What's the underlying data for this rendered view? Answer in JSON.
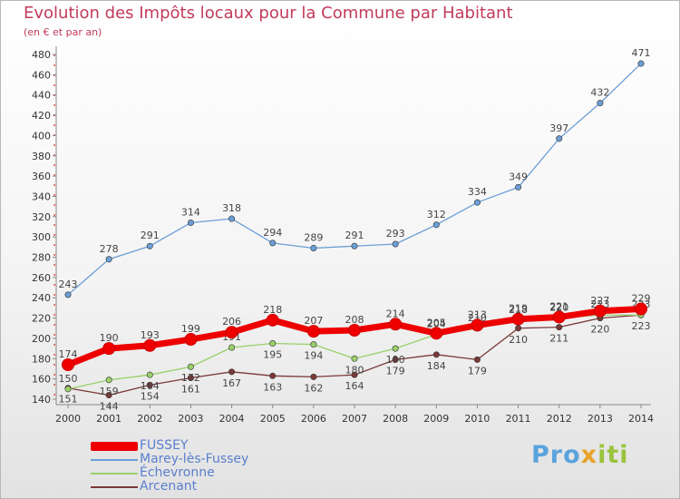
{
  "header": {
    "title": "Evolution des Impôts locaux pour la Commune par Habitant",
    "subtitle": "(en € et par an)"
  },
  "brand": {
    "part1": "Pro",
    "part2": "x",
    "part3": "iti"
  },
  "chart_data": {
    "type": "line",
    "title": "Evolution des Impôts locaux pour la Commune par Habitant",
    "subtitle": "(en € et par an)",
    "x": [
      2000,
      2001,
      2002,
      2003,
      2004,
      2005,
      2006,
      2007,
      2008,
      2009,
      2010,
      2011,
      2012,
      2013,
      2014
    ],
    "ylim": [
      140,
      480
    ],
    "yticks": [
      140,
      160,
      180,
      200,
      220,
      240,
      260,
      280,
      300,
      320,
      340,
      360,
      380,
      400,
      420,
      440,
      460,
      480
    ],
    "grid": false,
    "legend_position": "bottom-left",
    "series": [
      {
        "name": "FUSSEY",
        "color": "#ee0000",
        "values": [
          174,
          190,
          193,
          199,
          206,
          218,
          207,
          208,
          214,
          205,
          213,
          219,
          221,
          227,
          229
        ]
      },
      {
        "name": "Marey-lès-Fussey",
        "color": "#6b9ed6",
        "values": [
          243,
          278,
          291,
          314,
          318,
          294,
          289,
          291,
          293,
          312,
          334,
          349,
          397,
          432,
          471
        ]
      },
      {
        "name": "Échevronne",
        "color": "#9ad06a",
        "values": [
          150,
          159,
          164,
          172,
          191,
          195,
          194,
          180,
          190,
          204,
          210,
          218,
          220,
          223,
          223
        ]
      },
      {
        "name": "Arcenant",
        "color": "#7a3838",
        "values": [
          151,
          144,
          154,
          161,
          167,
          163,
          162,
          164,
          179,
          184,
          179,
          210,
          211,
          220,
          223
        ]
      }
    ]
  }
}
